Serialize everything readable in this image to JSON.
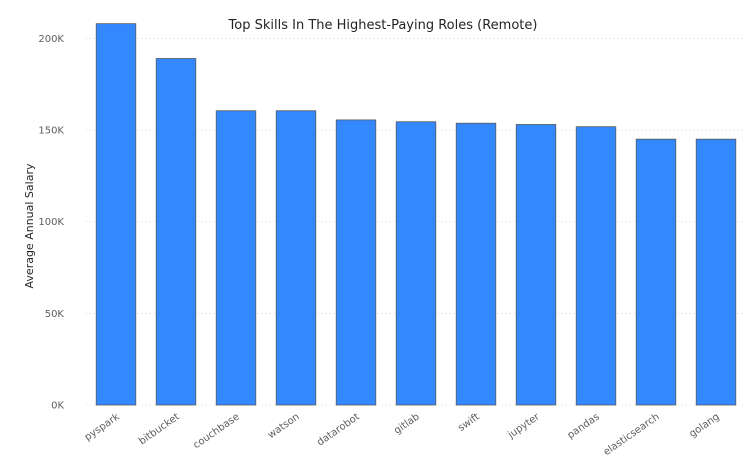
{
  "chart_data": {
    "type": "bar",
    "title": "Top Skills In The Highest-Paying Roles (Remote)",
    "xlabel": "",
    "ylabel": "Average Annual Salary",
    "categories": [
      "pyspark",
      "bitbucket",
      "couchbase",
      "watson",
      "datarobot",
      "gitlab",
      "swift",
      "jupyter",
      "pandas",
      "elasticsearch",
      "golang"
    ],
    "values": [
      208000,
      189000,
      160500,
      160500,
      155500,
      154500,
      153700,
      153000,
      151800,
      145000,
      145000
    ],
    "ylim": [
      0,
      210000
    ],
    "yticks": [
      0,
      50000,
      100000,
      150000,
      200000
    ],
    "ytick_labels": [
      "0K",
      "50K",
      "100K",
      "150K",
      "200K"
    ],
    "grid": true,
    "legend": "none",
    "colors": {
      "bar": "#3388ff",
      "bar_stroke": "#595959"
    }
  }
}
